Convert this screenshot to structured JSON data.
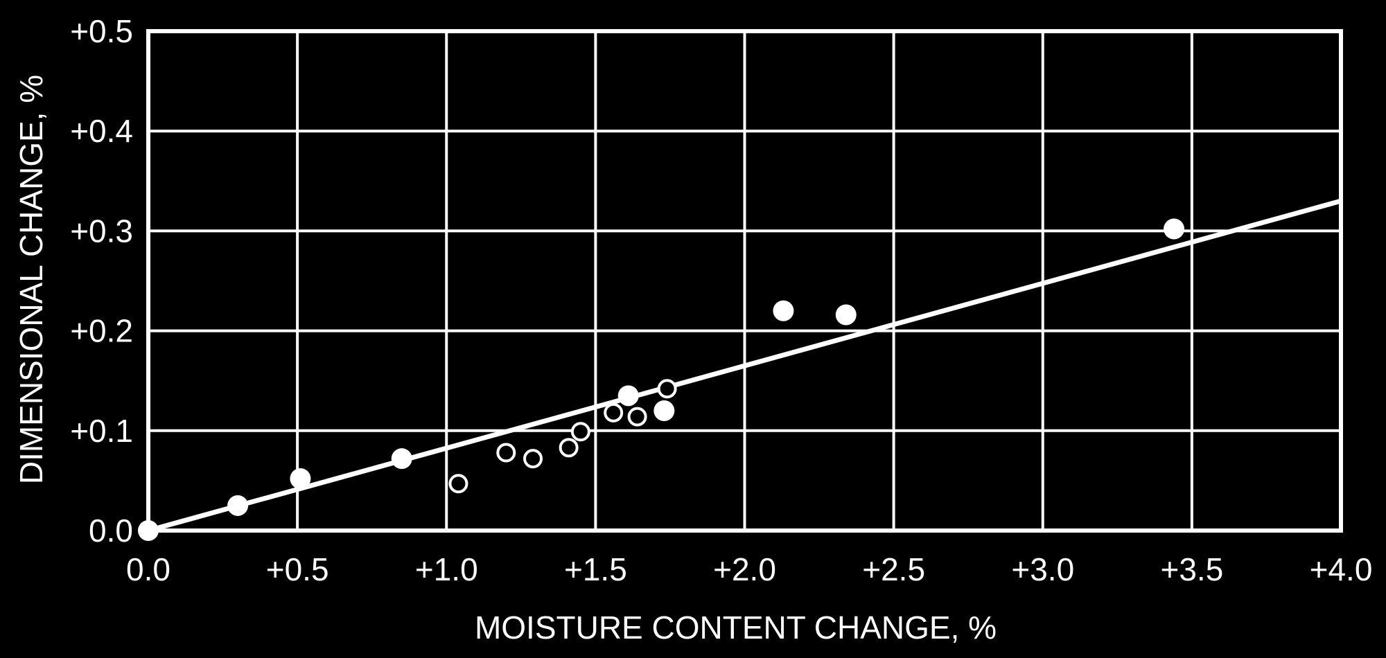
{
  "chart_data": {
    "type": "scatter",
    "title": "",
    "xlabel": "MOISTURE CONTENT CHANGE, %",
    "ylabel": "DIMENSIONAL CHANGE, %",
    "xlim": [
      0.0,
      4.0
    ],
    "ylim": [
      0.0,
      0.5
    ],
    "x_ticks": [
      0.0,
      0.5,
      1.0,
      1.5,
      2.0,
      2.5,
      3.0,
      3.5,
      4.0
    ],
    "x_tick_labels": [
      "0.0",
      "+0.5",
      "+1.0",
      "+1.5",
      "+2.0",
      "+2.5",
      "+3.0",
      "+3.5",
      "+4.0"
    ],
    "y_ticks": [
      0.0,
      0.1,
      0.2,
      0.3,
      0.4,
      0.5
    ],
    "y_tick_labels": [
      "0.0",
      "+0.1",
      "+0.2",
      "+0.3",
      "+0.4",
      "+0.5"
    ],
    "grid": true,
    "colors": {
      "background": "#000000",
      "foreground": "#ffffff"
    },
    "series": [
      {
        "marker": "filled-circle",
        "points": [
          {
            "x": 0.0,
            "y": 0.0
          },
          {
            "x": 0.3,
            "y": 0.025
          },
          {
            "x": 0.51,
            "y": 0.052
          },
          {
            "x": 0.85,
            "y": 0.072
          },
          {
            "x": 1.61,
            "y": 0.135
          },
          {
            "x": 1.73,
            "y": 0.12
          },
          {
            "x": 2.13,
            "y": 0.22
          },
          {
            "x": 2.34,
            "y": 0.216
          },
          {
            "x": 3.44,
            "y": 0.302
          }
        ]
      },
      {
        "marker": "open-circle",
        "points": [
          {
            "x": 1.04,
            "y": 0.047
          },
          {
            "x": 1.2,
            "y": 0.078
          },
          {
            "x": 1.29,
            "y": 0.072
          },
          {
            "x": 1.41,
            "y": 0.083
          },
          {
            "x": 1.45,
            "y": 0.099
          },
          {
            "x": 1.56,
            "y": 0.118
          },
          {
            "x": 1.64,
            "y": 0.114
          },
          {
            "x": 1.74,
            "y": 0.142
          }
        ]
      }
    ],
    "trend_line": {
      "from": {
        "x": 0.0,
        "y": 0.0
      },
      "to": {
        "x": 4.0,
        "y": 0.33
      }
    }
  }
}
